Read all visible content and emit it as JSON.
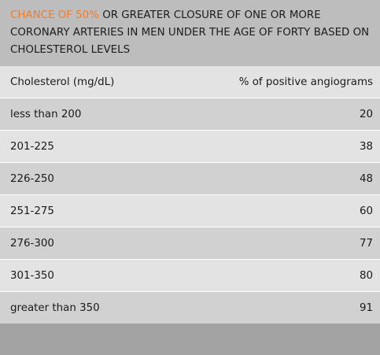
{
  "title": {
    "accent": "CHANCE OF 50%",
    "rest": " OR GREATER CLOSURE OF ONE OR MORE CORONARY ARTERIES IN MEN UNDER THE AGE OF FORTY BASED ON CHOLESTEROL LEVELS",
    "accent_color": "#f07d2c"
  },
  "table": {
    "headers": [
      "Cholesterol (mg/dL)",
      "% of positive angiograms"
    ],
    "rows": [
      {
        "label": "less than 200",
        "value": "20"
      },
      {
        "label": "201-225",
        "value": "38"
      },
      {
        "label": "226-250",
        "value": "48"
      },
      {
        "label": "251-275",
        "value": "60"
      },
      {
        "label": "276-300",
        "value": "77"
      },
      {
        "label": "301-350",
        "value": "80"
      },
      {
        "label": "greater than 350",
        "value": "91"
      }
    ]
  }
}
